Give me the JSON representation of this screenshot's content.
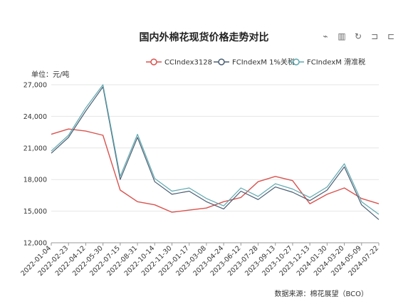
{
  "title": "国内外棉花现货价格走势对比",
  "toolbox": [
    {
      "name": "line-chart-icon",
      "glyph": "⌁"
    },
    {
      "name": "bar-chart-icon",
      "glyph": "▥"
    },
    {
      "name": "restore-icon",
      "glyph": "↻"
    },
    {
      "name": "crop-icon",
      "glyph": "⊐"
    },
    {
      "name": "save-icon",
      "glyph": "⊏"
    }
  ],
  "unit_label": "单位：元/吨",
  "source_label": "数据来源：棉花展望（BCO）",
  "chart_data": {
    "type": "line",
    "ylabel": "元/吨",
    "ylim": [
      12000,
      27000
    ],
    "yticks": [
      12000,
      15000,
      18000,
      21000,
      24000,
      27000
    ],
    "ytick_labels": [
      "12,000",
      "15,000",
      "18,000",
      "21,000",
      "24,000",
      "27,000"
    ],
    "grid": true,
    "legend_position": "top",
    "x": [
      "2022-01-04",
      "2022-02-23",
      "2022-04-12",
      "2022-05-30",
      "2022-07-15",
      "2022-08-31",
      "2022-10-14",
      "2022-11-30",
      "2023-01-17",
      "2023-03-08",
      "2023-04-24",
      "2023-06-12",
      "2023-07-28",
      "2023-09-13",
      "2023-10-27",
      "2023-12-13",
      "2024-01-30",
      "2024-03-20",
      "2024-05-09",
      "2024-07-22"
    ],
    "series": [
      {
        "name": "CCIndex3128",
        "color": "#d9534f",
        "values": [
          22300,
          22800,
          22600,
          22200,
          17000,
          15900,
          15600,
          14900,
          15100,
          15300,
          15900,
          16300,
          17800,
          18300,
          17900,
          15700,
          16600,
          17200,
          16200,
          15700
        ]
      },
      {
        "name": "FCIndexM 1%关税",
        "color": "#4a5e73",
        "values": [
          20500,
          22000,
          24500,
          26800,
          18000,
          22000,
          17800,
          16600,
          16900,
          15900,
          15200,
          16900,
          16100,
          17300,
          16800,
          16000,
          17000,
          19200,
          15600,
          14200
        ]
      },
      {
        "name": "FCIndexM 滑准税",
        "color": "#5fa8b0",
        "values": [
          20700,
          22200,
          24800,
          27000,
          18300,
          22300,
          18100,
          16900,
          17200,
          16200,
          15500,
          17200,
          16400,
          17600,
          17100,
          16300,
          17300,
          19500,
          15900,
          14700
        ]
      }
    ]
  }
}
